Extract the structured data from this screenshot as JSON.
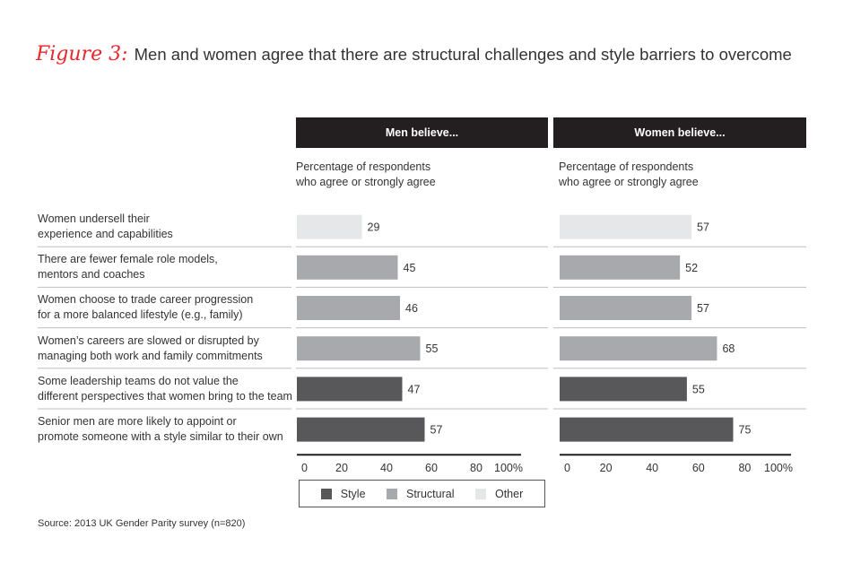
{
  "title": {
    "figure_label": "Figure 3:",
    "text": "Men and women agree that there are structural challenges and style barriers to overcome"
  },
  "source": "Source: 2013 UK Gender Parity survey (n=820)",
  "colors": {
    "Style": "#58585a",
    "Structural": "#a7a9ac",
    "Other": "#e6e7e8",
    "header": "#231f20"
  },
  "chart_data": {
    "type": "bar",
    "orientation": "horizontal",
    "categories": [
      "Women undersell their experience and capabilities",
      "There are fewer female role models, mentors and coaches",
      "Women choose to trade career progression for a more balanced lifestyle (e.g., family)",
      "Women’s careers are slowed or disrupted by managing both work and family commitments",
      "Some leadership teams do not value the different perspectives that women bring to the team",
      "Senior men are more likely to appoint or promote someone with a style similar to their own"
    ],
    "category_lines": [
      [
        "Women undersell their",
        "experience and capabilities"
      ],
      [
        "There are fewer female role models,",
        "mentors and coaches"
      ],
      [
        "Women choose to trade career progression",
        "for a more balanced lifestyle (e.g., family)"
      ],
      [
        "Women’s careers are slowed or disrupted by",
        "managing both work and family commitments"
      ],
      [
        "Some leadership teams do not value the",
        "different perspectives that women bring to the team"
      ],
      [
        "Senior men are more likely to appoint or",
        "promote someone with a style similar to their own"
      ]
    ],
    "category_types": [
      "Other",
      "Structural",
      "Structural",
      "Structural",
      "Style",
      "Style"
    ],
    "panels": [
      {
        "title": "Men believe...",
        "subtitle_lines": [
          "Percentage of respondents",
          "who agree or strongly agree"
        ],
        "values": [
          29,
          45,
          46,
          55,
          47,
          57
        ]
      },
      {
        "title": "Women believe...",
        "subtitle_lines": [
          "Percentage of respondents",
          "who agree or strongly agree"
        ],
        "values": [
          57,
          52,
          57,
          68,
          55,
          75
        ]
      }
    ],
    "xlim": [
      0,
      100
    ],
    "xticks": [
      0,
      20,
      40,
      60,
      80,
      100
    ],
    "xtick_labels": [
      "0",
      "20",
      "40",
      "60",
      "80",
      "100%"
    ],
    "legend": {
      "position": "bottom",
      "entries": [
        "Style",
        "Structural",
        "Other"
      ]
    }
  }
}
